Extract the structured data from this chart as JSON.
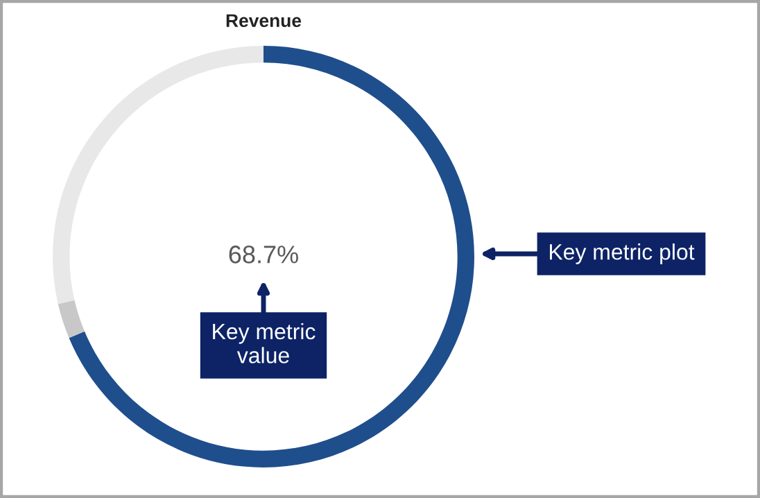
{
  "chart_data": {
    "type": "donut",
    "title": "Revenue",
    "categories": [
      null,
      null,
      null
    ],
    "values": [
      68.7,
      2.7,
      28.6
    ],
    "colors": [
      "#1f4e8c",
      "#c8c8c8",
      "#e8e8e8"
    ],
    "value_labels": [
      "68.7%",
      null,
      null
    ],
    "annotations": [
      "Key metric value",
      "Key metric plot"
    ]
  }
}
